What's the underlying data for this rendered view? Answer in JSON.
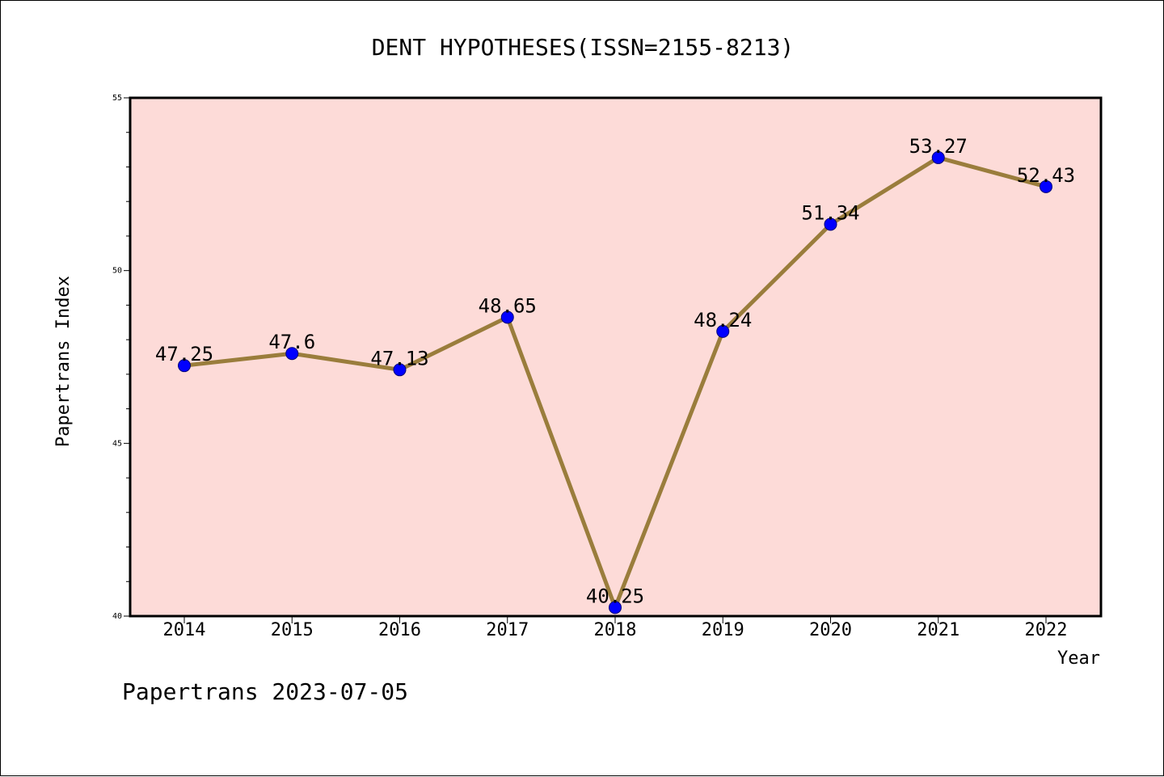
{
  "chart_data": {
    "type": "line",
    "title": "DENT HYPOTHESES(ISSN=2155-8213)",
    "xlabel": "Year",
    "ylabel": "Papertrans Index",
    "categories": [
      "2014",
      "2015",
      "2016",
      "2017",
      "2018",
      "2019",
      "2020",
      "2021",
      "2022"
    ],
    "values": [
      47.25,
      47.6,
      47.13,
      48.65,
      40.25,
      48.24,
      51.34,
      53.27,
      52.43
    ],
    "value_labels": [
      "47.25",
      "47.6",
      "47.13",
      "48.65",
      "40.25",
      "48.24",
      "51.34",
      "53.27",
      "52.43"
    ],
    "ylim": [
      40,
      55
    ],
    "yticks": [
      "40",
      "45",
      "50",
      "55"
    ],
    "grid": false,
    "legend": "none",
    "colors": {
      "plot_background": "#fddbd8",
      "line": "#9a7d3c",
      "marker": "#0000ff",
      "axes": "#000000"
    }
  },
  "footer": {
    "text": "Papertrans 2023-07-05"
  }
}
